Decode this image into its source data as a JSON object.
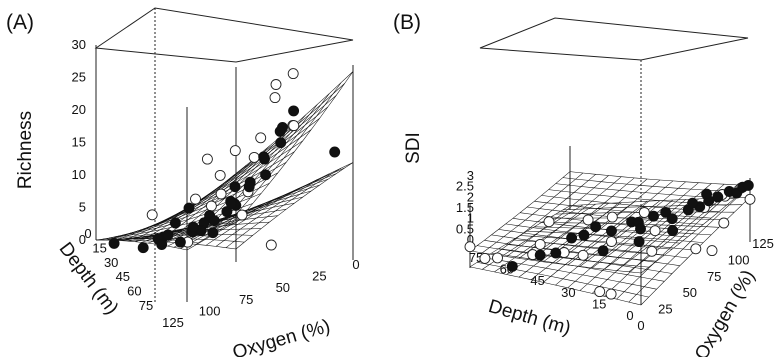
{
  "chart_data": [
    {
      "type": "scatter",
      "panel_label": "(A)",
      "zlabel": "Richness",
      "xlabel": "Depth (m)",
      "ylabel": "Oxygen (%)",
      "z_ticks": [
        "0",
        "5",
        "10",
        "15",
        "20",
        "25",
        "30"
      ],
      "depth_ticks": [
        "0",
        "15",
        "30",
        "45",
        "60",
        "75"
      ],
      "oxygen_ticks": [
        "0",
        "25",
        "50",
        "75",
        "100",
        "125"
      ],
      "zlim": [
        0,
        30
      ],
      "depth_lim": [
        0,
        75
      ],
      "oxygen_lim": [
        0,
        125
      ],
      "surfaces": [
        {
          "z_corners": {
            "d0_o0": 29,
            "d75_o0": 6,
            "d0_o125": 14,
            "d75_o125": 0
          }
        },
        {
          "z_corners": {
            "d0_o0": 15,
            "d75_o0": 2,
            "d0_o125": 8,
            "d75_o125": 0
          }
        }
      ],
      "series": [
        {
          "marker": "open",
          "points": [
            [
              0,
              45,
              31
            ],
            [
              0,
              58,
              30
            ],
            [
              10,
              48,
              27
            ],
            [
              12,
              32,
              22
            ],
            [
              20,
              68,
              19
            ],
            [
              15,
              95,
              19
            ],
            [
              30,
              10,
              21
            ],
            [
              50,
              12,
              19
            ],
            [
              48,
              20,
              16
            ],
            [
              55,
              40,
              13
            ],
            [
              40,
              35,
              11
            ],
            [
              60,
              55,
              9
            ],
            [
              65,
              35,
              8
            ],
            [
              62,
              90,
              6
            ],
            [
              70,
              20,
              10
            ],
            [
              60,
              15,
              7
            ],
            [
              30,
              28,
              3
            ],
            [
              68,
              52,
              2
            ]
          ]
        },
        {
          "marker": "filled",
          "points": [
            [
              5,
              8,
              17
            ],
            [
              15,
              28,
              24
            ],
            [
              12,
              40,
              22
            ],
            [
              18,
              35,
              21
            ],
            [
              22,
              30,
              19
            ],
            [
              20,
              45,
              17
            ],
            [
              25,
              40,
              17
            ],
            [
              28,
              35,
              14
            ],
            [
              30,
              45,
              13
            ],
            [
              35,
              40,
              12
            ],
            [
              38,
              48,
              12
            ],
            [
              35,
              55,
              10
            ],
            [
              40,
              45,
              9
            ],
            [
              42,
              50,
              8
            ],
            [
              45,
              40,
              9
            ],
            [
              48,
              62,
              6
            ],
            [
              50,
              55,
              7
            ],
            [
              52,
              70,
              8
            ],
            [
              45,
              68,
              5
            ],
            [
              55,
              45,
              6
            ],
            [
              58,
              60,
              4
            ],
            [
              60,
              40,
              4
            ],
            [
              62,
              70,
              5
            ],
            [
              58,
              85,
              3
            ],
            [
              65,
              62,
              2
            ],
            [
              68,
              78,
              2
            ],
            [
              60,
              100,
              1
            ],
            [
              72,
              70,
              1
            ],
            [
              74,
              110,
              0
            ],
            [
              40,
              80,
              6
            ],
            [
              30,
              60,
              10
            ],
            [
              50,
              90,
              4
            ]
          ]
        }
      ]
    },
    {
      "type": "scatter",
      "panel_label": "(B)",
      "zlabel": "SDI",
      "xlabel": "Depth (m)",
      "ylabel": "Oxygen (%)",
      "z_ticks": [
        "0",
        "0.5",
        "1",
        "1.5",
        "2",
        "2.5",
        "3"
      ],
      "depth_ticks": [
        "0",
        "15",
        "30",
        "45",
        "60",
        "75"
      ],
      "oxygen_ticks": [
        "0",
        "25",
        "50",
        "75",
        "100",
        "125"
      ],
      "zlim": [
        0,
        3
      ],
      "depth_lim": [
        0,
        75
      ],
      "oxygen_lim": [
        0,
        125
      ],
      "surfaces": [
        {
          "z_corners": {
            "d0_o0": 1.5,
            "d75_o0": 0.8,
            "d0_o125": 2.65,
            "d75_o125": 1.8
          }
        },
        {
          "z_corners": {
            "d0_o0": 0.0,
            "d75_o0": 0.05,
            "d0_o125": 2.1,
            "d75_o125": 0.2
          }
        }
      ],
      "series": [
        {
          "marker": "open",
          "points": [
            [
              75,
              0,
              1.0
            ],
            [
              72,
              10,
              0.3
            ],
            [
              70,
              20,
              0.15
            ],
            [
              60,
              35,
              0.2
            ],
            [
              50,
              45,
              0.3
            ],
            [
              40,
              40,
              0.5
            ],
            [
              35,
              60,
              0.8
            ],
            [
              20,
              5,
              0.05
            ],
            [
              15,
              5,
              0.05
            ],
            [
              0,
              95,
              1.6
            ],
            [
              10,
              100,
              2.0
            ],
            [
              5,
              110,
              2.4
            ],
            [
              2,
              120,
              2.6
            ],
            [
              8,
              115,
              2.3
            ],
            [
              0,
              125,
              2.0
            ],
            [
              20,
              70,
              1.4
            ],
            [
              30,
              85,
              1.7
            ],
            [
              45,
              60,
              1.6
            ],
            [
              60,
              55,
              1.3
            ],
            [
              10,
              90,
              0.3
            ],
            [
              5,
              95,
              0.2
            ],
            [
              25,
              80,
              0.1
            ],
            [
              55,
              30,
              0.9
            ],
            [
              40,
              75,
              1.5
            ]
          ]
        },
        {
          "marker": "filled",
          "points": [
            [
              60,
              10,
              0.2
            ],
            [
              55,
              30,
              0.4
            ],
            [
              45,
              40,
              1.2
            ],
            [
              40,
              55,
              1.5
            ],
            [
              45,
              55,
              1.0
            ],
            [
              35,
              60,
              1.3
            ],
            [
              30,
              70,
              1.6
            ],
            [
              30,
              78,
              1.4
            ],
            [
              25,
              82,
              1.7
            ],
            [
              22,
              88,
              1.8
            ],
            [
              20,
              90,
              1.5
            ],
            [
              15,
              95,
              1.9
            ],
            [
              12,
              100,
              2.0
            ],
            [
              10,
              105,
              2.2
            ],
            [
              8,
              110,
              2.3
            ],
            [
              5,
              115,
              2.5
            ],
            [
              3,
              118,
              2.4
            ],
            [
              2,
              122,
              2.6
            ],
            [
              0,
              123,
              2.7
            ],
            [
              18,
              85,
              1.1
            ],
            [
              25,
              65,
              0.9
            ],
            [
              35,
              50,
              0.6
            ],
            [
              50,
              35,
              0.5
            ],
            [
              28,
              75,
              1.2
            ],
            [
              15,
              100,
              2.1
            ],
            [
              12,
              108,
              2.4
            ]
          ]
        }
      ]
    }
  ]
}
